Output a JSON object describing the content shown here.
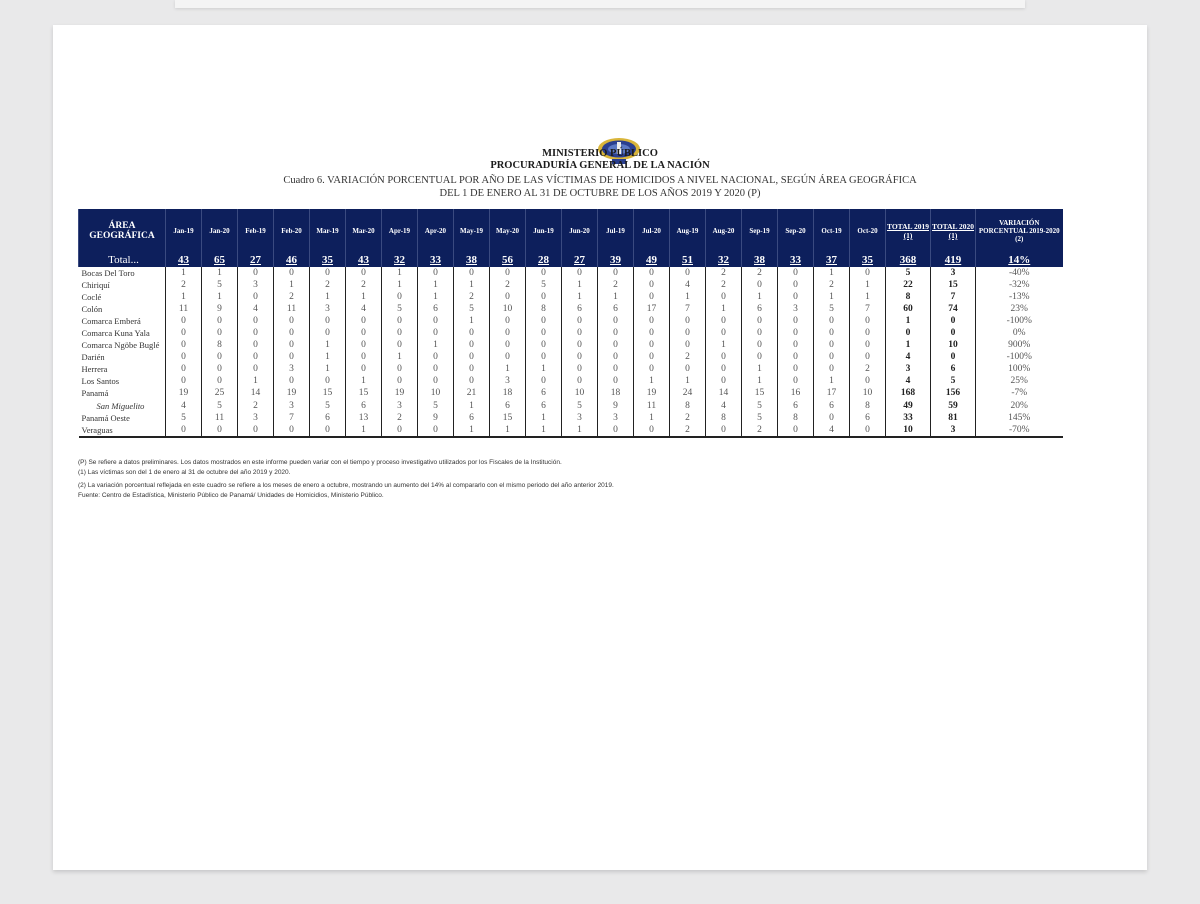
{
  "header": {
    "org": "MINISTERIO PÚBLICO",
    "office": "PROCURADURÍA GENERAL DE LA NACIÓN",
    "title": "Cuadro 6. VARIACIÓN PORCENTUAL POR AÑO DE LAS VÍCTIMAS DE HOMICIDOS A NIVEL NACIONAL, SEGÚN ÁREA GEOGRÁFICA",
    "subtitle": "DEL 1 DE ENERO AL 31 DE OCTUBRE DE LOS AÑOS 2019 Y 2020 (P)"
  },
  "table": {
    "area_header": "ÁREA GEOGRÁFICA",
    "months": [
      "Jan-19",
      "Jan-20",
      "Feb-19",
      "Feb-20",
      "Mar-19",
      "Mar-20",
      "Apr-19",
      "Apr-20",
      "May-19",
      "May-20",
      "Jun-19",
      "Jun-20",
      "Jul-19",
      "Jul-20",
      "Aug-19",
      "Aug-20",
      "Sep-19",
      "Sep-20",
      "Oct-19",
      "Oct-20"
    ],
    "total2019_header": "TOTAL 2019 (1)",
    "total2020_header": "TOTAL 2020 (1)",
    "variation_header": "VARIACIÓN PORCENTUAL 2019-2020 (2)",
    "total_row": {
      "name": "Total...",
      "values": [
        43,
        65,
        27,
        46,
        35,
        43,
        32,
        33,
        38,
        56,
        28,
        27,
        39,
        49,
        51,
        32,
        38,
        33,
        37,
        35
      ],
      "t2019": 368,
      "t2020": 419,
      "var": "14%"
    },
    "rows": [
      {
        "name": "Bocas Del Toro",
        "values": [
          1,
          1,
          0,
          0,
          0,
          0,
          1,
          0,
          0,
          0,
          0,
          0,
          0,
          0,
          0,
          2,
          2,
          0,
          1,
          0
        ],
        "t2019": 5,
        "t2020": 3,
        "var": "-40%"
      },
      {
        "name": "Chiriquí",
        "values": [
          2,
          5,
          3,
          1,
          2,
          2,
          1,
          1,
          1,
          2,
          5,
          1,
          2,
          0,
          4,
          2,
          0,
          0,
          2,
          1
        ],
        "t2019": 22,
        "t2020": 15,
        "var": "-32%"
      },
      {
        "name": "Coclé",
        "values": [
          1,
          1,
          0,
          2,
          1,
          1,
          0,
          1,
          2,
          0,
          0,
          1,
          1,
          0,
          1,
          0,
          1,
          0,
          1,
          1
        ],
        "t2019": 8,
        "t2020": 7,
        "var": "-13%"
      },
      {
        "name": "Colón",
        "values": [
          11,
          9,
          4,
          11,
          3,
          4,
          5,
          6,
          5,
          10,
          8,
          6,
          6,
          17,
          7,
          1,
          6,
          3,
          5,
          7
        ],
        "t2019": 60,
        "t2020": 74,
        "var": "23%"
      },
      {
        "name": "Comarca Emberá",
        "values": [
          0,
          0,
          0,
          0,
          0,
          0,
          0,
          0,
          1,
          0,
          0,
          0,
          0,
          0,
          0,
          0,
          0,
          0,
          0,
          0
        ],
        "t2019": 1,
        "t2020": 0,
        "var": "-100%"
      },
      {
        "name": "Comarca Kuna Yala",
        "values": [
          0,
          0,
          0,
          0,
          0,
          0,
          0,
          0,
          0,
          0,
          0,
          0,
          0,
          0,
          0,
          0,
          0,
          0,
          0,
          0
        ],
        "t2019": 0,
        "t2020": 0,
        "var": "0%"
      },
      {
        "name": "Comarca Ngöbe Buglé",
        "values": [
          0,
          8,
          0,
          0,
          1,
          0,
          0,
          1,
          0,
          0,
          0,
          0,
          0,
          0,
          0,
          1,
          0,
          0,
          0,
          0
        ],
        "t2019": 1,
        "t2020": 10,
        "var": "900%"
      },
      {
        "name": "Darién",
        "values": [
          0,
          0,
          0,
          0,
          1,
          0,
          1,
          0,
          0,
          0,
          0,
          0,
          0,
          0,
          2,
          0,
          0,
          0,
          0,
          0
        ],
        "t2019": 4,
        "t2020": 0,
        "var": "-100%"
      },
      {
        "name": "Herrera",
        "values": [
          0,
          0,
          0,
          3,
          1,
          0,
          0,
          0,
          0,
          1,
          1,
          0,
          0,
          0,
          0,
          0,
          1,
          0,
          0,
          2
        ],
        "t2019": 3,
        "t2020": 6,
        "var": "100%"
      },
      {
        "name": "Los Santos",
        "values": [
          0,
          0,
          1,
          0,
          0,
          1,
          0,
          0,
          0,
          3,
          0,
          0,
          0,
          1,
          1,
          0,
          1,
          0,
          1,
          0
        ],
        "t2019": 4,
        "t2020": 5,
        "var": "25%"
      },
      {
        "name": "Panamá",
        "values": [
          19,
          25,
          14,
          19,
          15,
          15,
          19,
          10,
          21,
          18,
          6,
          10,
          18,
          19,
          24,
          14,
          15,
          16,
          17,
          10
        ],
        "t2019": 168,
        "t2020": 156,
        "var": "-7%"
      },
      {
        "name": "San Miguelito",
        "italic": true,
        "values": [
          4,
          5,
          2,
          3,
          5,
          6,
          3,
          5,
          1,
          6,
          6,
          5,
          9,
          11,
          8,
          4,
          5,
          6,
          6,
          8
        ],
        "t2019": 49,
        "t2020": 59,
        "var": "20%"
      },
      {
        "name": "Panamá Oeste",
        "values": [
          5,
          11,
          3,
          7,
          6,
          13,
          2,
          9,
          6,
          15,
          1,
          3,
          3,
          1,
          2,
          8,
          5,
          8,
          0,
          6
        ],
        "t2019": 33,
        "t2020": 81,
        "var": "145%"
      },
      {
        "name": "Veraguas",
        "values": [
          0,
          0,
          0,
          0,
          0,
          1,
          0,
          0,
          1,
          1,
          1,
          1,
          0,
          0,
          2,
          0,
          2,
          0,
          4,
          0
        ],
        "t2019": 10,
        "t2020": 3,
        "var": "-70%"
      }
    ]
  },
  "notes": [
    "(P) Se refiere a datos preliminares.  Los datos mostrados en este informe pueden variar con el tiempo y proceso investigativo utilizados por los Fiscales de la Institución.",
    "(1) Las víctimas son del 1 de enero al 31 de octubre del año 2019 y 2020.",
    "(2) La variación porcentual reflejada en este cuadro se refiere a los meses de enero a octubre, mostrando un aumento del 14% al compararlo con el mismo periodo del año anterior 2019.",
    "Fuente: Centro de Estadística, Ministerio Público de Panamá/ Unidades de Homicidios, Ministerio Público."
  ],
  "colors": {
    "header_bg": "#0d1f5c",
    "header_text": "#ffffff"
  }
}
